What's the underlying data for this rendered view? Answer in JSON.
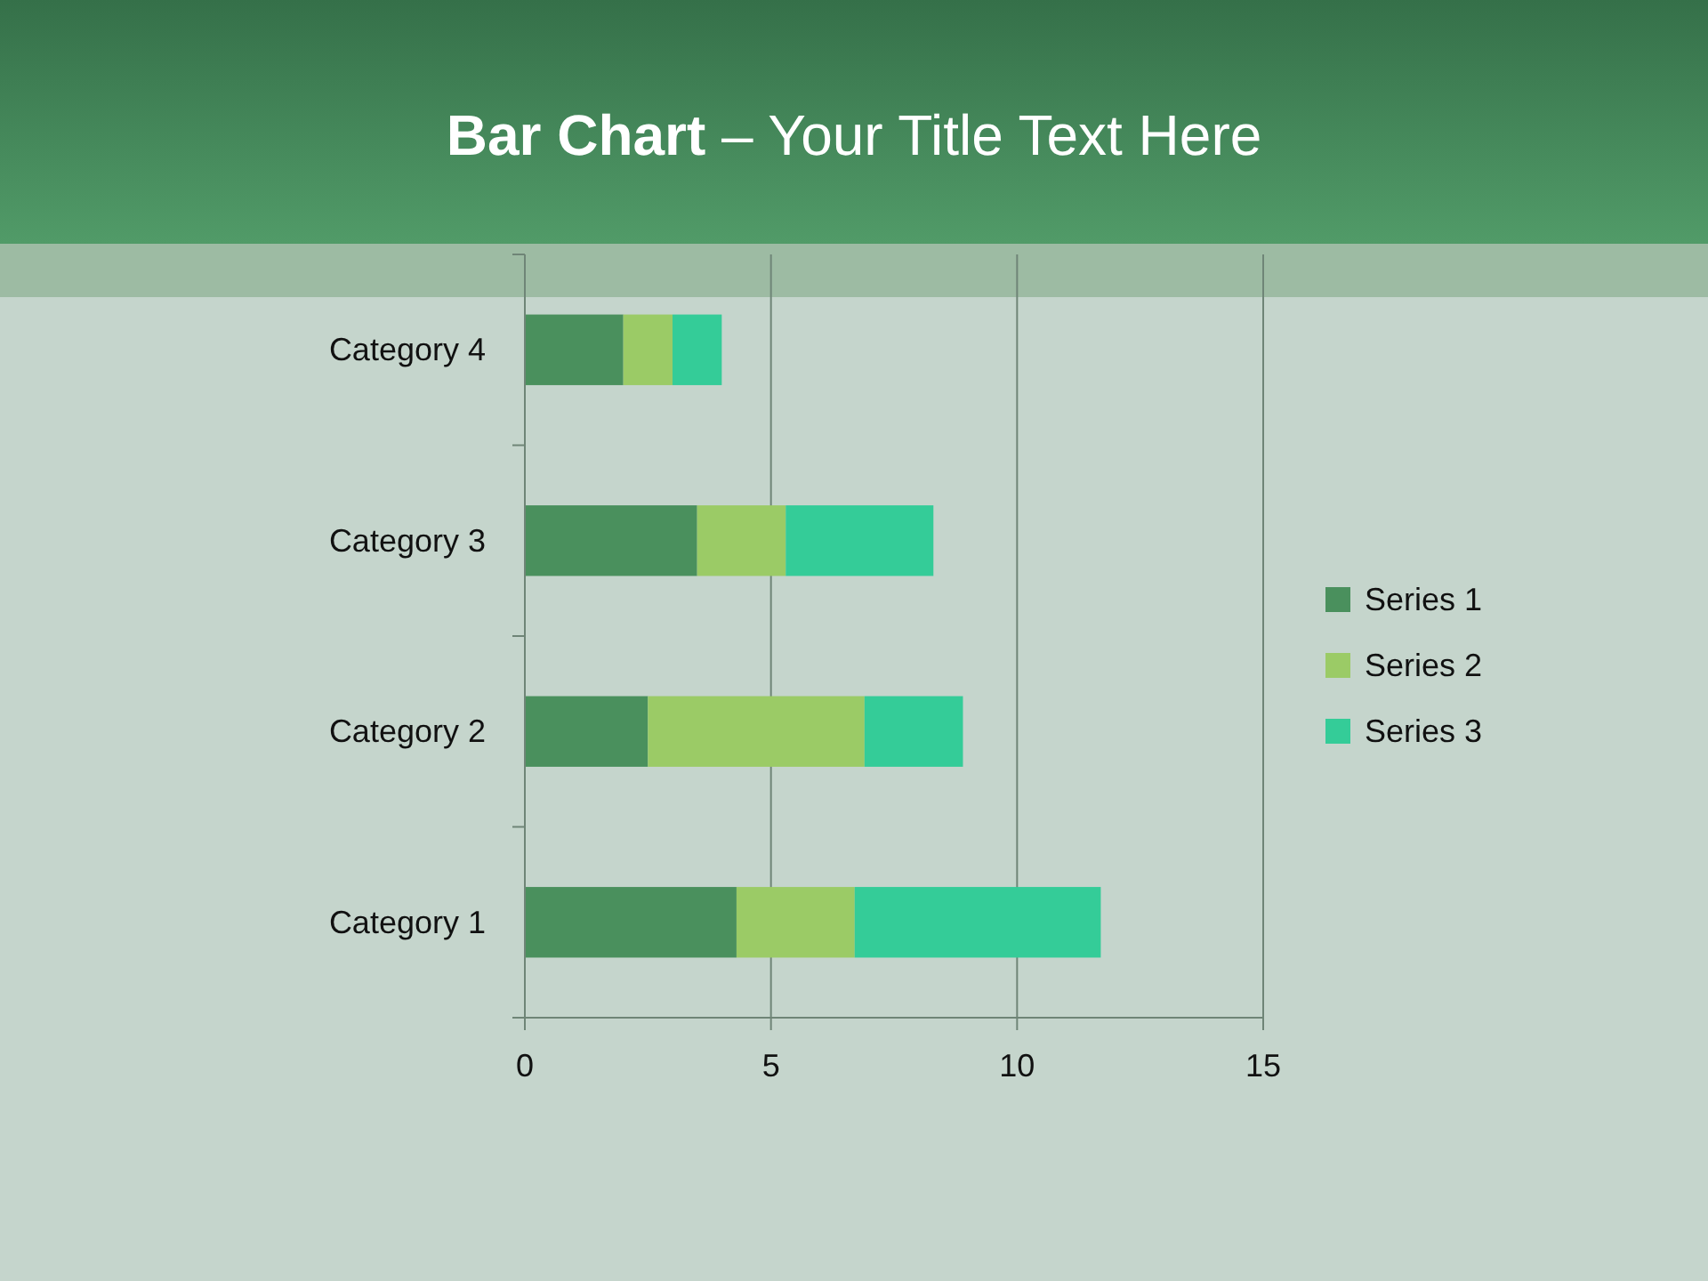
{
  "chart_data": {
    "type": "bar",
    "title": "Bar Chart – Your Title Text Here",
    "orientation": "horizontal",
    "stacked": true,
    "categories": [
      "Category 4",
      "Category 3",
      "Category 2",
      "Category 1"
    ],
    "series": [
      {
        "name": "Series 1",
        "color": "#4a905d",
        "values": [
          2,
          3.5,
          2.5,
          4.3
        ]
      },
      {
        "name": "Series 2",
        "color": "#9bcb66",
        "values": [
          1,
          1.8,
          4.4,
          2.4
        ]
      },
      {
        "name": "Series 3",
        "color": "#34cc98",
        "values": [
          1,
          3,
          2,
          5
        ]
      }
    ],
    "xlim": [
      0,
      15
    ],
    "xticks": [
      0,
      5,
      10,
      15
    ],
    "grid": "x",
    "legend": "right"
  }
}
